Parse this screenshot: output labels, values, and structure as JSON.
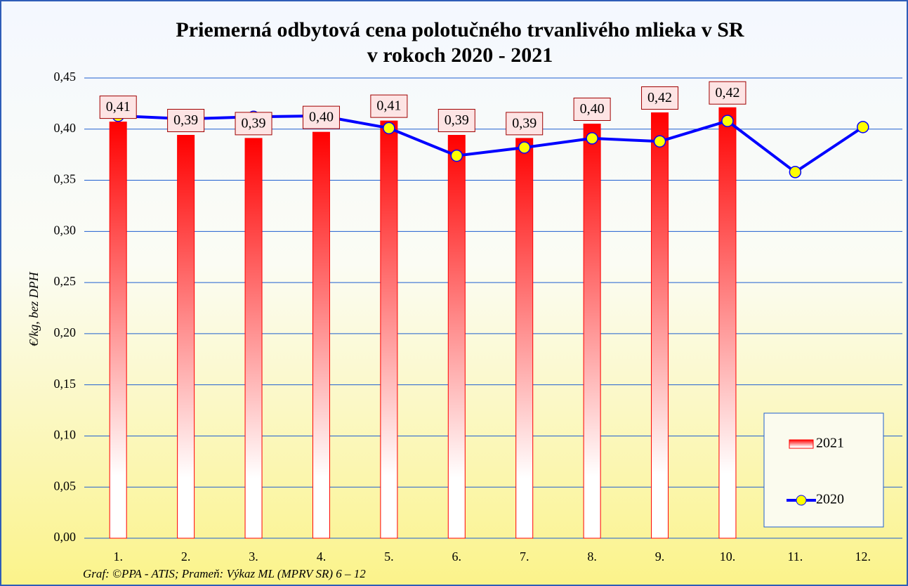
{
  "chart_data": {
    "type": "bar_line",
    "title": [
      "Priemerná odbytová cena polotučného trvanlivého mlieka v SR",
      "v rokoch 2020 - 2021"
    ],
    "ylabel": "€/kg,  bez DPH",
    "source": "Graf: ©PPA - ATIS; Prameň: Výkaz ML (MPRV SR) 6 – 12",
    "categories": [
      "1.",
      "2.",
      "3.",
      "4.",
      "5.",
      "6.",
      "7.",
      "8.",
      "9.",
      "10.",
      "11.",
      "12."
    ],
    "series": [
      {
        "name": "2021",
        "type": "bar",
        "color": "#ff0000",
        "values": [
          0.407,
          0.394,
          0.391,
          0.397,
          0.408,
          0.394,
          0.391,
          0.405,
          0.416,
          0.421,
          null,
          null
        ],
        "value_labels": [
          "0,41",
          "0,39",
          "0,39",
          "0,40",
          "0,41",
          "0,39",
          "0,39",
          "0,40",
          "0,42",
          "0,42",
          null,
          null
        ]
      },
      {
        "name": "2020",
        "type": "line",
        "color": "#0000ff",
        "marker_color": "#ffff00",
        "values": [
          0.413,
          0.41,
          0.412,
          0.413,
          0.401,
          0.374,
          0.382,
          0.391,
          0.388,
          0.408,
          0.358,
          0.402
        ]
      }
    ],
    "ylim": [
      0,
      0.45
    ],
    "yticks": [
      {
        "value": 0,
        "label": "0,00"
      },
      {
        "value": 0.05,
        "label": "0,05"
      },
      {
        "value": 0.1,
        "label": "0,10"
      },
      {
        "value": 0.15,
        "label": "0,15"
      },
      {
        "value": 0.2,
        "label": "0,20"
      },
      {
        "value": 0.25,
        "label": "0,25"
      },
      {
        "value": 0.3,
        "label": "0,30"
      },
      {
        "value": 0.35,
        "label": "0,35"
      },
      {
        "value": 0.4,
        "label": "0,40"
      },
      {
        "value": 0.45,
        "label": "0,45"
      }
    ],
    "grid": true,
    "legend": "lower right"
  }
}
